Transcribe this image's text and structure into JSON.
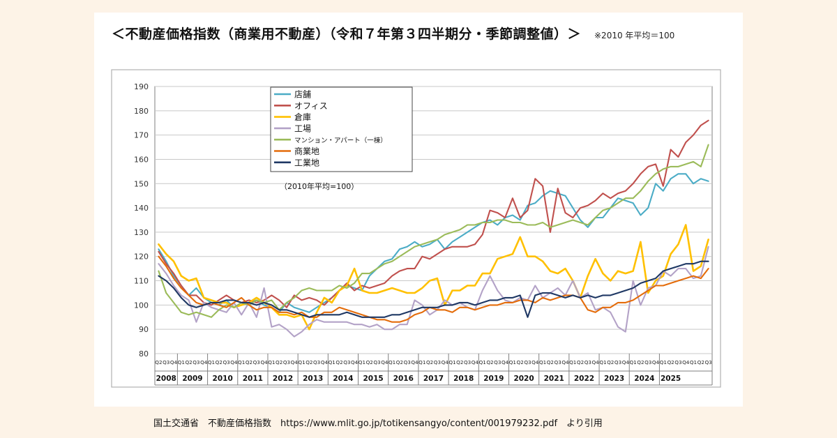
{
  "header": {
    "title": "＜不動産価格指数（商業用不動産）（令和７年第３四半期分・季節調整値）＞",
    "note": "※2010 年平均＝100"
  },
  "footer": {
    "source": "国土交通省　不動産価格指数　https://www.mlit.go.jp/totikensangyo/content/001979232.pdf　より引用"
  },
  "colors": {
    "店舗": "#4bacc6",
    "オフィス": "#c0504d",
    "倉庫": "#ffc000",
    "工場": "#b3a2c7",
    "マンション・アパート（一棟）": "#9bbb59",
    "商業地": "#e46c0a",
    "工業地": "#1f3864"
  },
  "chart_data": {
    "type": "line",
    "title": "不動産価格指数（商業用不動産）（令和７年第３四半期分・季節調整値）",
    "xlabel": "",
    "ylabel": "",
    "ylim": [
      80,
      190
    ],
    "yticks": [
      80,
      90,
      100,
      110,
      120,
      130,
      140,
      150,
      160,
      170,
      180,
      190
    ],
    "grid": true,
    "legend_position": "top-left",
    "legend_note": "（2010年平均=100）",
    "quarter_labels": [
      "Q2",
      "Q3",
      "Q4",
      "Q1",
      "Q2",
      "Q3",
      "Q4",
      "Q1",
      "Q2",
      "Q3",
      "Q4",
      "Q1",
      "Q2",
      "Q3",
      "Q4",
      "Q1",
      "Q2",
      "Q3",
      "Q4",
      "Q1",
      "Q2",
      "Q3",
      "Q4",
      "Q1",
      "Q2",
      "Q3",
      "Q4",
      "Q1",
      "Q2",
      "Q3",
      "Q4",
      "Q1",
      "Q2",
      "Q3",
      "Q4",
      "Q1",
      "Q2",
      "Q3",
      "Q4",
      "Q1",
      "Q2",
      "Q3",
      "Q4",
      "Q1",
      "Q2",
      "Q3",
      "Q4",
      "Q1",
      "Q2",
      "Q3",
      "Q4",
      "Q1",
      "Q2",
      "Q3",
      "Q4",
      "Q1",
      "Q2",
      "Q3",
      "Q4",
      "Q1",
      "Q2",
      "Q3",
      "Q4",
      "Q1",
      "Q2",
      "Q3",
      "Q4",
      "Q1",
      "Q2",
      "Q3",
      "Q4",
      "Q1",
      "Q2",
      "Q3"
    ],
    "years": [
      {
        "label": "2008",
        "quarters": 3
      },
      {
        "label": "2009",
        "quarters": 4
      },
      {
        "label": "2010",
        "quarters": 4
      },
      {
        "label": "2011",
        "quarters": 4
      },
      {
        "label": "2012",
        "quarters": 4
      },
      {
        "label": "2013",
        "quarters": 4
      },
      {
        "label": "2014",
        "quarters": 4
      },
      {
        "label": "2015",
        "quarters": 4
      },
      {
        "label": "2016",
        "quarters": 4
      },
      {
        "label": "2017",
        "quarters": 4
      },
      {
        "label": "2018",
        "quarters": 4
      },
      {
        "label": "2019",
        "quarters": 4
      },
      {
        "label": "2020",
        "quarters": 4
      },
      {
        "label": "2021",
        "quarters": 4
      },
      {
        "label": "2022",
        "quarters": 4
      },
      {
        "label": "2023",
        "quarters": 4
      },
      {
        "label": "2024",
        "quarters": 4
      },
      {
        "label": "2025",
        "quarters": 3
      }
    ],
    "series": [
      {
        "name": "店舗",
        "values": [
          123,
          118,
          112,
          108,
          104,
          107,
          103,
          101,
          100,
          102,
          99,
          100,
          101,
          102,
          100,
          99,
          97,
          101,
          99,
          98,
          97,
          99,
          101,
          103,
          106,
          108,
          107,
          106,
          112,
          115,
          118,
          119,
          123,
          124,
          126,
          124,
          125,
          127,
          123,
          126,
          128,
          130,
          132,
          134,
          135,
          133,
          136,
          137,
          135,
          141,
          142,
          145,
          147,
          146,
          145,
          140,
          135,
          132,
          136,
          136,
          140,
          144,
          143,
          142,
          137,
          140,
          150,
          147,
          152,
          154,
          154,
          150,
          152,
          151
        ]
      },
      {
        "name": "オフィス",
        "values": [
          122,
          117,
          113,
          108,
          104,
          104,
          101,
          100,
          102,
          104,
          102,
          101,
          102,
          101,
          102,
          104,
          102,
          99,
          104,
          102,
          103,
          102,
          100,
          103,
          106,
          109,
          106,
          108,
          107,
          108,
          109,
          112,
          114,
          115,
          115,
          120,
          119,
          121,
          123,
          124,
          124,
          124,
          125,
          129,
          139,
          138,
          136,
          144,
          136,
          139,
          152,
          149,
          130,
          148,
          138,
          136,
          140,
          141,
          143,
          146,
          144,
          146,
          147,
          150,
          154,
          157,
          158,
          149,
          164,
          161,
          167,
          170,
          174,
          176
        ]
      },
      {
        "name": "倉庫",
        "values": [
          125,
          121,
          118,
          112,
          110,
          111,
          103,
          102,
          101,
          101,
          99,
          100,
          101,
          103,
          101,
          99,
          96,
          96,
          95,
          96,
          90,
          97,
          103,
          101,
          106,
          108,
          115,
          106,
          105,
          105,
          106,
          107,
          106,
          105,
          105,
          107,
          110,
          111,
          100,
          106,
          106,
          108,
          108,
          113,
          113,
          119,
          120,
          121,
          128,
          120,
          120,
          118,
          114,
          113,
          115,
          110,
          103,
          112,
          119,
          113,
          110,
          114,
          113,
          114,
          126,
          105,
          110,
          112,
          121,
          125,
          133,
          114,
          116,
          127
        ]
      },
      {
        "name": "工場",
        "values": [
          117,
          113,
          108,
          104,
          102,
          93,
          101,
          99,
          98,
          97,
          101,
          96,
          101,
          95,
          107,
          91,
          92,
          90,
          87,
          89,
          92,
          94,
          93,
          93,
          93,
          93,
          92,
          92,
          91,
          92,
          90,
          90,
          92,
          92,
          102,
          100,
          96,
          98,
          102,
          100,
          101,
          99,
          98,
          106,
          112,
          106,
          102,
          101,
          103,
          102,
          108,
          103,
          105,
          107,
          104,
          110,
          103,
          105,
          98,
          99,
          97,
          91,
          89,
          110,
          100,
          107,
          108,
          114,
          112,
          115,
          115,
          111,
          112,
          124
        ]
      },
      {
        "name": "マンション・アパート（一棟）",
        "values": [
          114,
          105,
          101,
          97,
          96,
          97,
          96,
          95,
          98,
          100,
          99,
          101,
          100,
          102,
          101,
          102,
          98,
          101,
          103,
          106,
          107,
          106,
          106,
          106,
          108,
          107,
          109,
          113,
          113,
          115,
          117,
          118,
          120,
          122,
          124,
          125,
          126,
          127,
          129,
          130,
          131,
          133,
          133,
          134,
          134,
          135,
          135,
          134,
          134,
          133,
          133,
          134,
          132,
          133,
          134,
          135,
          134,
          133,
          136,
          139,
          140,
          142,
          144,
          144,
          147,
          151,
          154,
          156,
          157,
          157,
          158,
          159,
          157,
          166
        ]
      },
      {
        "name": "商業地",
        "values": [
          120,
          116,
          111,
          107,
          104,
          101,
          100,
          101,
          100,
          99,
          101,
          103,
          100,
          98,
          99,
          99,
          97,
          97,
          96,
          97,
          95,
          95,
          97,
          97,
          99,
          98,
          97,
          96,
          95,
          94,
          94,
          93,
          93,
          94,
          96,
          97,
          99,
          98,
          98,
          97,
          99,
          99,
          98,
          99,
          100,
          100,
          101,
          101,
          102,
          102,
          101,
          103,
          102,
          103,
          104,
          104,
          103,
          98,
          97,
          99,
          99,
          101,
          101,
          102,
          104,
          106,
          108,
          108,
          109,
          110,
          111,
          112,
          111,
          115
        ]
      },
      {
        "name": "工業地",
        "values": [
          112,
          110,
          107,
          103,
          100,
          99,
          100,
          101,
          101,
          102,
          102,
          101,
          101,
          100,
          101,
          100,
          98,
          98,
          97,
          96,
          95,
          96,
          96,
          96,
          96,
          97,
          96,
          95,
          95,
          95,
          95,
          96,
          96,
          97,
          98,
          99,
          99,
          99,
          100,
          100,
          101,
          101,
          100,
          101,
          102,
          102,
          103,
          103,
          104,
          95,
          104,
          105,
          105,
          104,
          103,
          104,
          103,
          104,
          103,
          104,
          104,
          105,
          106,
          107,
          109,
          110,
          111,
          114,
          115,
          116,
          117,
          117,
          118,
          118
        ]
      }
    ]
  }
}
